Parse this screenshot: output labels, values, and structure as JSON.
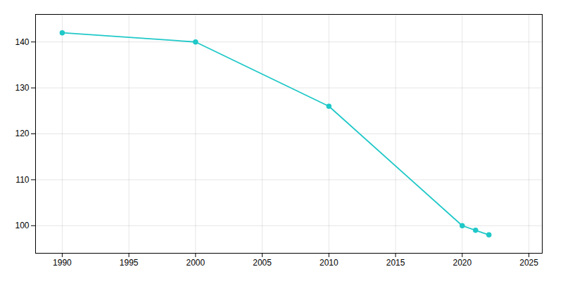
{
  "chart_data": {
    "type": "line",
    "x": [
      1990,
      2000,
      2010,
      2020,
      2021,
      2022
    ],
    "values": [
      142,
      140,
      126,
      100,
      99,
      98
    ],
    "color": "#20c8c8",
    "marker": "circle",
    "xlim": [
      1988,
      2026
    ],
    "xticks": [
      1990,
      1995,
      2000,
      2005,
      2010,
      2015,
      2020,
      2025
    ],
    "ylim": [
      94,
      146
    ],
    "yticks": [
      100,
      110,
      120,
      130,
      140
    ],
    "grid": true
  }
}
